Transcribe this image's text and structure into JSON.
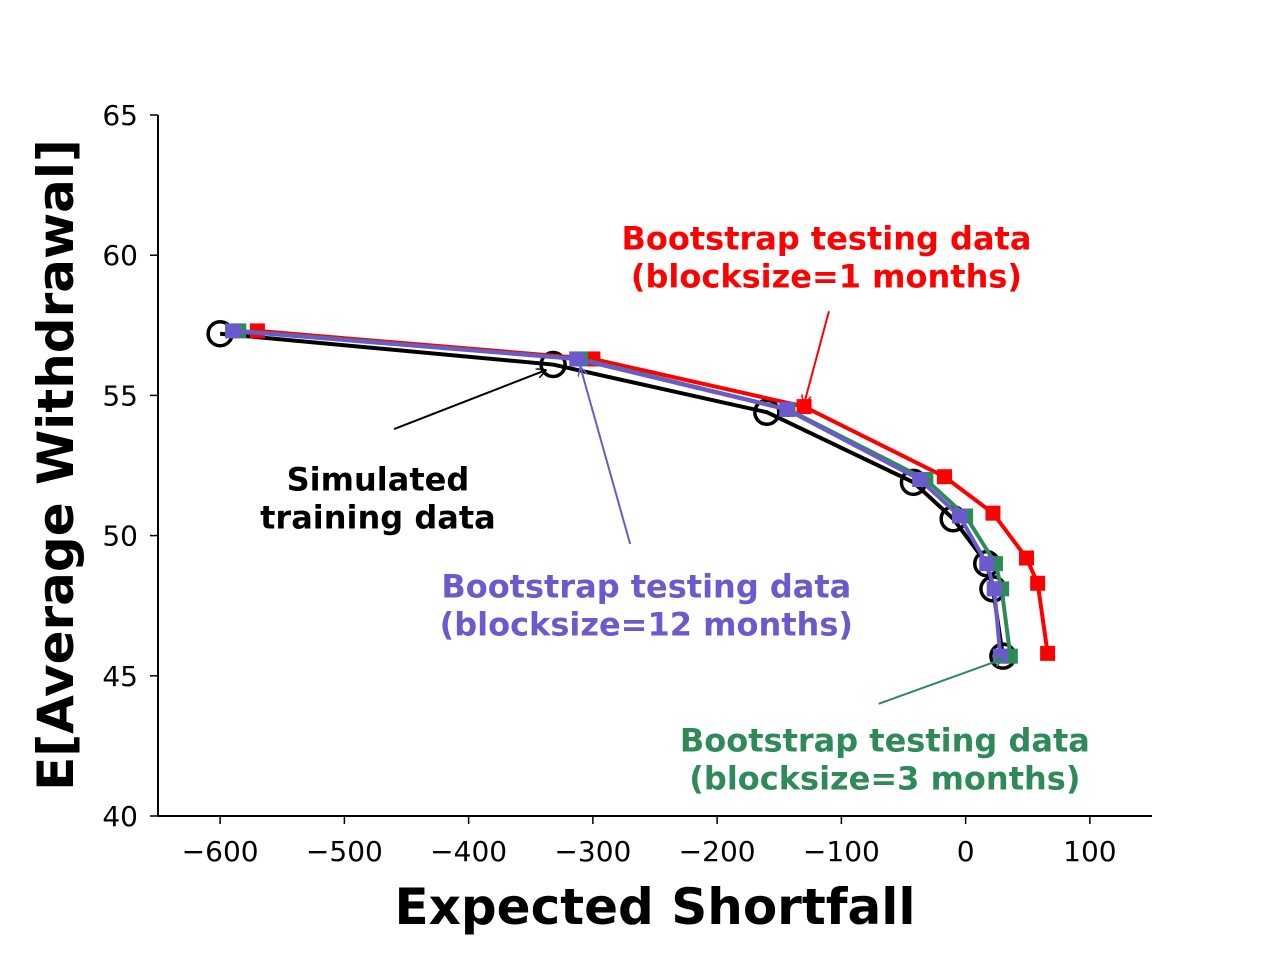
{
  "chart_data": {
    "type": "line",
    "title": "",
    "xlabel": "Expected Shortfall",
    "ylabel": "E[Average Withdrawal]",
    "xlim": [
      -650,
      150
    ],
    "ylim": [
      40,
      65
    ],
    "xticks": [
      -600,
      -500,
      -400,
      -300,
      -200,
      -100,
      0,
      100
    ],
    "yticks": [
      40,
      45,
      50,
      55,
      60,
      65
    ],
    "xtick_labels": [
      "−600",
      "−500",
      "−400",
      "−300",
      "−200",
      "−100",
      "0",
      "100"
    ],
    "ytick_labels": [
      "40",
      "45",
      "50",
      "55",
      "60",
      "65"
    ],
    "grid": false,
    "series": [
      {
        "name": "Simulated training data",
        "color": "#000000",
        "marker": "open-circle",
        "x": [
          -600,
          -332,
          -160,
          -42,
          -10,
          17,
          22,
          30
        ],
        "y": [
          57.2,
          56.1,
          54.4,
          51.9,
          50.6,
          49.0,
          48.1,
          45.7
        ]
      },
      {
        "name": "Bootstrap testing data (blocksize=1 months)",
        "color": "#ff0000",
        "marker": "square",
        "x": [
          -570,
          -300,
          -130,
          -17,
          22,
          49,
          58,
          66
        ],
        "y": [
          57.3,
          56.3,
          54.6,
          52.1,
          50.8,
          49.2,
          48.3,
          45.8
        ]
      },
      {
        "name": "Bootstrap testing data (blocksize=3 months)",
        "color": "#2e8b57",
        "marker": "square",
        "x": [
          -585,
          -310,
          -143,
          -32,
          0,
          24,
          29,
          36
        ],
        "y": [
          57.3,
          56.3,
          54.5,
          52.0,
          50.7,
          49.0,
          48.1,
          45.7
        ]
      },
      {
        "name": "Bootstrap testing data (blocksize=12 months)",
        "color": "#6a5acd",
        "marker": "square",
        "x": [
          -590,
          -313,
          -144,
          -37,
          -5,
          17,
          23,
          28
        ],
        "y": [
          57.3,
          56.3,
          54.5,
          52.0,
          50.7,
          49.0,
          48.1,
          45.7
        ]
      }
    ],
    "annotations": [
      {
        "lines": [
          "Bootstrap testing data",
          "(blocksize=1 months)"
        ],
        "color": "#ff0000",
        "x": -112,
        "y": 60.2,
        "arrow_from": [
          -110,
          58.0
        ],
        "arrow_to": [
          -130,
          54.7
        ]
      },
      {
        "lines": [
          "Simulated",
          "training data"
        ],
        "color": "#000000",
        "x": -473,
        "y": 51.6,
        "arrow_from": [
          -460,
          53.8
        ],
        "arrow_to": [
          -338,
          55.9
        ]
      },
      {
        "lines": [
          "Bootstrap testing data",
          "(blocksize=12 months)"
        ],
        "color": "#6a5acd",
        "x": -257,
        "y": 47.8,
        "arrow_from": [
          -270,
          49.7
        ],
        "arrow_to": [
          -310,
          56.0
        ]
      },
      {
        "lines": [
          "Bootstrap testing data",
          "(blocksize=3 months)"
        ],
        "color": "#2e8b57",
        "x": -65,
        "y": 42.3,
        "arrow_from": [
          -70,
          44.0
        ],
        "arrow_to": [
          30,
          45.6
        ]
      }
    ]
  }
}
